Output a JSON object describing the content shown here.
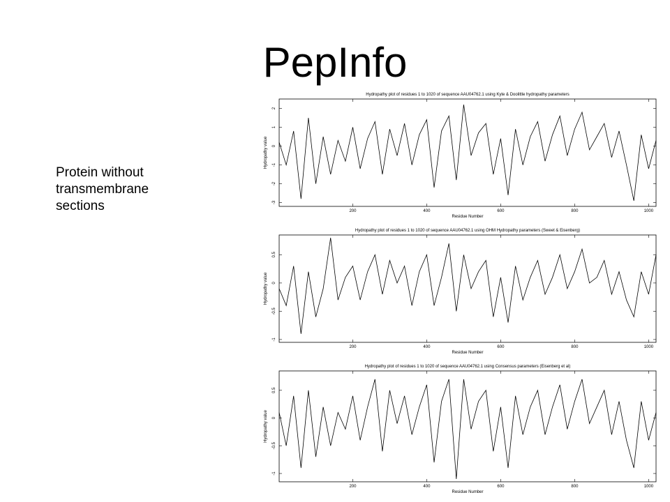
{
  "slide": {
    "title": "PepInfo",
    "side_text": [
      "Protein without",
      "transmembrane",
      "sections"
    ]
  },
  "chart_data": [
    {
      "type": "line",
      "title": "Hydropathy plot of residues 1 to 1020 of sequence AAU04762.1 using Kyte & Doolittle hydropathy parameters",
      "xlabel": "Residue Number",
      "ylabel": "Hydropathy value",
      "xlim": [
        1,
        1020
      ],
      "ylim": [
        -3.2,
        2.5
      ],
      "xticks": [
        200,
        400,
        600,
        800,
        1000
      ],
      "yticks": [
        -3,
        -2,
        -1,
        0,
        1,
        2
      ],
      "x": [
        1,
        20,
        40,
        60,
        80,
        100,
        120,
        140,
        160,
        180,
        200,
        220,
        240,
        260,
        280,
        300,
        320,
        340,
        360,
        380,
        400,
        420,
        440,
        460,
        480,
        500,
        520,
        540,
        560,
        580,
        600,
        620,
        640,
        660,
        680,
        700,
        720,
        740,
        760,
        780,
        800,
        820,
        840,
        860,
        880,
        900,
        920,
        940,
        960,
        980,
        1000,
        1020
      ],
      "y": [
        0.2,
        -1.0,
        0.8,
        -2.8,
        1.5,
        -2.0,
        0.5,
        -1.5,
        0.3,
        -0.8,
        1.0,
        -1.2,
        0.4,
        1.3,
        -1.5,
        0.9,
        -0.5,
        1.2,
        -1.0,
        0.6,
        1.4,
        -2.2,
        0.8,
        1.6,
        -1.8,
        2.2,
        -0.5,
        0.7,
        1.2,
        -1.5,
        0.4,
        -2.6,
        0.9,
        -1.0,
        0.5,
        1.3,
        -0.8,
        0.6,
        1.6,
        -0.5,
        0.9,
        1.8,
        -0.2,
        0.5,
        1.2,
        -0.6,
        0.8,
        -1.0,
        -2.9,
        0.6,
        -1.2,
        0.3
      ]
    },
    {
      "type": "line",
      "title": "Hydropathy plot of residues 1 to 1020 of sequence AAU04762.1 using OHM Hydropathy parameters (Sweet & Eisenberg)",
      "xlabel": "Residue Number",
      "ylabel": "Hydropathy value",
      "xlim": [
        1,
        1020
      ],
      "ylim": [
        -1.05,
        0.85
      ],
      "xticks": [
        200,
        400,
        600,
        800,
        1000
      ],
      "yticks": [
        -1.0,
        -0.5,
        0.0,
        0.5
      ],
      "x": [
        1,
        20,
        40,
        60,
        80,
        100,
        120,
        140,
        160,
        180,
        200,
        220,
        240,
        260,
        280,
        300,
        320,
        340,
        360,
        380,
        400,
        420,
        440,
        460,
        480,
        500,
        520,
        540,
        560,
        580,
        600,
        620,
        640,
        660,
        680,
        700,
        720,
        740,
        760,
        780,
        800,
        820,
        840,
        860,
        880,
        900,
        920,
        940,
        960,
        980,
        1000,
        1020
      ],
      "y": [
        -0.1,
        -0.4,
        0.3,
        -0.9,
        0.2,
        -0.6,
        -0.1,
        0.8,
        -0.3,
        0.1,
        0.3,
        -0.3,
        0.2,
        0.5,
        -0.2,
        0.4,
        0.0,
        0.3,
        -0.4,
        0.2,
        0.5,
        -0.4,
        0.1,
        0.7,
        -0.5,
        0.5,
        -0.1,
        0.2,
        0.4,
        -0.6,
        0.1,
        -0.7,
        0.3,
        -0.3,
        0.1,
        0.4,
        -0.2,
        0.1,
        0.5,
        -0.1,
        0.2,
        0.6,
        0.0,
        0.1,
        0.4,
        -0.2,
        0.2,
        -0.3,
        -0.6,
        0.2,
        -0.2,
        0.5
      ]
    },
    {
      "type": "line",
      "title": "Hydropathy plot of residues 1 to 1020 of sequence AAU04762.1 using Consensus parameters (Eisenberg et al)",
      "xlabel": "Residue Number",
      "ylabel": "Hydropathy value",
      "xlim": [
        1,
        1020
      ],
      "ylim": [
        -1.15,
        0.85
      ],
      "xticks": [
        200,
        400,
        600,
        800,
        1000
      ],
      "yticks": [
        -1.0,
        -0.5,
        0.0,
        0.5
      ],
      "x": [
        1,
        20,
        40,
        60,
        80,
        100,
        120,
        140,
        160,
        180,
        200,
        220,
        240,
        260,
        280,
        300,
        320,
        340,
        360,
        380,
        400,
        420,
        440,
        460,
        480,
        500,
        520,
        540,
        560,
        580,
        600,
        620,
        640,
        660,
        680,
        700,
        720,
        740,
        760,
        780,
        800,
        820,
        840,
        860,
        880,
        900,
        920,
        940,
        960,
        980,
        1000,
        1020
      ],
      "y": [
        0.1,
        -0.5,
        0.4,
        -0.9,
        0.5,
        -0.7,
        0.2,
        -0.5,
        0.1,
        -0.2,
        0.4,
        -0.4,
        0.2,
        0.7,
        -0.6,
        0.5,
        -0.1,
        0.4,
        -0.3,
        0.2,
        0.6,
        -0.8,
        0.3,
        0.7,
        -1.1,
        0.7,
        -0.2,
        0.3,
        0.5,
        -0.6,
        0.2,
        -0.9,
        0.4,
        -0.3,
        0.2,
        0.5,
        -0.3,
        0.2,
        0.6,
        -0.2,
        0.3,
        0.7,
        -0.1,
        0.2,
        0.5,
        -0.3,
        0.3,
        -0.4,
        -0.9,
        0.3,
        -0.4,
        0.1
      ]
    }
  ]
}
